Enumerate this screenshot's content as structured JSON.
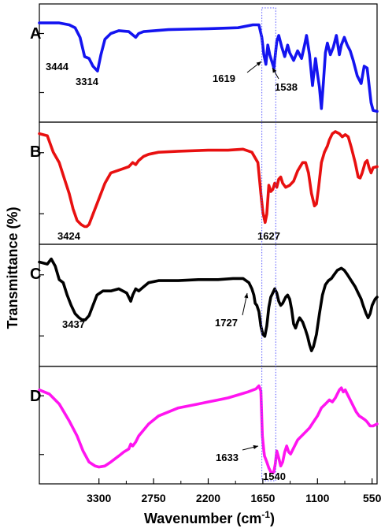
{
  "chart_data": {
    "type": "line",
    "title": "",
    "xlabel": "Wavenumber",
    "xlabel_unit": "(cm",
    "xlabel_unit_exponent": "-1",
    "xlabel_unit_close": ")",
    "ylabel": "Transmittance (%)",
    "xlim": [
      3900,
      500
    ],
    "x_reversed": true,
    "x_ticks": [
      "3300",
      "2750",
      "2200",
      "1650",
      "1100",
      "550"
    ],
    "x_tick_values": [
      3300,
      2750,
      2200,
      1650,
      1100,
      550
    ],
    "grid": false,
    "highlight_band": {
      "x_from": 1660,
      "x_to": 1520,
      "style": "dotted-blue-box"
    },
    "series": [
      {
        "name": "A",
        "color": "#1414f0",
        "peak_labels": [
          "3444",
          "3314",
          "1619",
          "1538"
        ],
        "points": [
          [
            3900,
            0.95
          ],
          [
            3700,
            0.95
          ],
          [
            3600,
            0.93
          ],
          [
            3540,
            0.9
          ],
          [
            3490,
            0.8
          ],
          [
            3444,
            0.6
          ],
          [
            3400,
            0.58
          ],
          [
            3360,
            0.5
          ],
          [
            3314,
            0.45
          ],
          [
            3280,
            0.62
          ],
          [
            3240,
            0.78
          ],
          [
            3180,
            0.84
          ],
          [
            3100,
            0.87
          ],
          [
            3000,
            0.86
          ],
          [
            2930,
            0.8
          ],
          [
            2900,
            0.84
          ],
          [
            2850,
            0.86
          ],
          [
            2600,
            0.88
          ],
          [
            2200,
            0.89
          ],
          [
            1900,
            0.9
          ],
          [
            1750,
            0.93
          ],
          [
            1690,
            0.93
          ],
          [
            1660,
            0.8
          ],
          [
            1640,
            0.62
          ],
          [
            1619,
            0.52
          ],
          [
            1600,
            0.72
          ],
          [
            1580,
            0.62
          ],
          [
            1560,
            0.55
          ],
          [
            1538,
            0.48
          ],
          [
            1510,
            0.76
          ],
          [
            1490,
            0.82
          ],
          [
            1460,
            0.7
          ],
          [
            1430,
            0.6
          ],
          [
            1400,
            0.72
          ],
          [
            1380,
            0.64
          ],
          [
            1340,
            0.56
          ],
          [
            1300,
            0.66
          ],
          [
            1260,
            0.58
          ],
          [
            1230,
            0.72
          ],
          [
            1210,
            0.82
          ],
          [
            1180,
            0.62
          ],
          [
            1150,
            0.3
          ],
          [
            1120,
            0.58
          ],
          [
            1100,
            0.42
          ],
          [
            1080,
            0.28
          ],
          [
            1060,
            0.06
          ],
          [
            1040,
            0.34
          ],
          [
            1020,
            0.64
          ],
          [
            1000,
            0.74
          ],
          [
            970,
            0.62
          ],
          [
            940,
            0.7
          ],
          [
            910,
            0.82
          ],
          [
            880,
            0.62
          ],
          [
            860,
            0.72
          ],
          [
            830,
            0.8
          ],
          [
            800,
            0.72
          ],
          [
            770,
            0.66
          ],
          [
            740,
            0.56
          ],
          [
            700,
            0.4
          ],
          [
            660,
            0.32
          ],
          [
            630,
            0.5
          ],
          [
            600,
            0.48
          ],
          [
            580,
            0.3
          ],
          [
            560,
            0.12
          ],
          [
            540,
            0.04
          ],
          [
            500,
            0.03
          ]
        ]
      },
      {
        "name": "B",
        "color": "#e81010",
        "peak_labels": [
          "3424",
          "1627"
        ],
        "points": [
          [
            3900,
            0.98
          ],
          [
            3820,
            0.96
          ],
          [
            3760,
            0.8
          ],
          [
            3700,
            0.7
          ],
          [
            3650,
            0.55
          ],
          [
            3600,
            0.4
          ],
          [
            3560,
            0.25
          ],
          [
            3520,
            0.14
          ],
          [
            3480,
            0.1
          ],
          [
            3444,
            0.08
          ],
          [
            3424,
            0.08
          ],
          [
            3400,
            0.1
          ],
          [
            3360,
            0.2
          ],
          [
            3300,
            0.35
          ],
          [
            3240,
            0.5
          ],
          [
            3180,
            0.6
          ],
          [
            3120,
            0.62
          ],
          [
            3060,
            0.64
          ],
          [
            3000,
            0.66
          ],
          [
            2960,
            0.7
          ],
          [
            2930,
            0.68
          ],
          [
            2900,
            0.72
          ],
          [
            2850,
            0.76
          ],
          [
            2800,
            0.78
          ],
          [
            2700,
            0.8
          ],
          [
            2500,
            0.81
          ],
          [
            2200,
            0.82
          ],
          [
            2000,
            0.82
          ],
          [
            1850,
            0.83
          ],
          [
            1760,
            0.8
          ],
          [
            1700,
            0.7
          ],
          [
            1670,
            0.4
          ],
          [
            1650,
            0.22
          ],
          [
            1627,
            0.12
          ],
          [
            1610,
            0.2
          ],
          [
            1590,
            0.48
          ],
          [
            1570,
            0.42
          ],
          [
            1550,
            0.44
          ],
          [
            1530,
            0.5
          ],
          [
            1510,
            0.46
          ],
          [
            1490,
            0.54
          ],
          [
            1470,
            0.56
          ],
          [
            1450,
            0.5
          ],
          [
            1420,
            0.46
          ],
          [
            1380,
            0.48
          ],
          [
            1340,
            0.52
          ],
          [
            1300,
            0.62
          ],
          [
            1250,
            0.7
          ],
          [
            1220,
            0.7
          ],
          [
            1190,
            0.6
          ],
          [
            1160,
            0.4
          ],
          [
            1130,
            0.28
          ],
          [
            1110,
            0.3
          ],
          [
            1090,
            0.45
          ],
          [
            1060,
            0.7
          ],
          [
            1030,
            0.8
          ],
          [
            1000,
            0.86
          ],
          [
            980,
            0.92
          ],
          [
            950,
            0.98
          ],
          [
            920,
            1.0
          ],
          [
            880,
            0.98
          ],
          [
            850,
            0.95
          ],
          [
            820,
            0.97
          ],
          [
            790,
            0.95
          ],
          [
            760,
            0.85
          ],
          [
            720,
            0.7
          ],
          [
            690,
            0.56
          ],
          [
            670,
            0.55
          ],
          [
            650,
            0.6
          ],
          [
            620,
            0.7
          ],
          [
            600,
            0.72
          ],
          [
            580,
            0.65
          ],
          [
            560,
            0.6
          ],
          [
            540,
            0.65
          ],
          [
            500,
            0.66
          ]
        ]
      },
      {
        "name": "C",
        "color": "#000000",
        "peak_labels": [
          "3437",
          "1727"
        ],
        "points": [
          [
            3900,
            0.92
          ],
          [
            3820,
            0.9
          ],
          [
            3780,
            0.95
          ],
          [
            3740,
            0.88
          ],
          [
            3700,
            0.75
          ],
          [
            3660,
            0.72
          ],
          [
            3620,
            0.6
          ],
          [
            3580,
            0.5
          ],
          [
            3540,
            0.42
          ],
          [
            3500,
            0.38
          ],
          [
            3470,
            0.36
          ],
          [
            3437,
            0.36
          ],
          [
            3400,
            0.4
          ],
          [
            3360,
            0.5
          ],
          [
            3320,
            0.6
          ],
          [
            3260,
            0.64
          ],
          [
            3180,
            0.64
          ],
          [
            3100,
            0.66
          ],
          [
            3020,
            0.62
          ],
          [
            2980,
            0.54
          ],
          [
            2960,
            0.6
          ],
          [
            2930,
            0.66
          ],
          [
            2900,
            0.64
          ],
          [
            2850,
            0.68
          ],
          [
            2800,
            0.72
          ],
          [
            2700,
            0.74
          ],
          [
            2500,
            0.74
          ],
          [
            2300,
            0.75
          ],
          [
            2100,
            0.75
          ],
          [
            1950,
            0.76
          ],
          [
            1850,
            0.76
          ],
          [
            1790,
            0.72
          ],
          [
            1760,
            0.66
          ],
          [
            1740,
            0.6
          ],
          [
            1727,
            0.52
          ],
          [
            1710,
            0.5
          ],
          [
            1690,
            0.44
          ],
          [
            1670,
            0.3
          ],
          [
            1650,
            0.22
          ],
          [
            1630,
            0.2
          ],
          [
            1610,
            0.3
          ],
          [
            1590,
            0.48
          ],
          [
            1570,
            0.58
          ],
          [
            1550,
            0.62
          ],
          [
            1530,
            0.66
          ],
          [
            1510,
            0.62
          ],
          [
            1490,
            0.54
          ],
          [
            1470,
            0.5
          ],
          [
            1450,
            0.52
          ],
          [
            1420,
            0.58
          ],
          [
            1400,
            0.6
          ],
          [
            1380,
            0.56
          ],
          [
            1360,
            0.46
          ],
          [
            1340,
            0.32
          ],
          [
            1320,
            0.28
          ],
          [
            1300,
            0.34
          ],
          [
            1280,
            0.38
          ],
          [
            1250,
            0.34
          ],
          [
            1220,
            0.26
          ],
          [
            1200,
            0.2
          ],
          [
            1180,
            0.12
          ],
          [
            1160,
            0.06
          ],
          [
            1140,
            0.1
          ],
          [
            1110,
            0.22
          ],
          [
            1080,
            0.42
          ],
          [
            1050,
            0.6
          ],
          [
            1020,
            0.7
          ],
          [
            990,
            0.74
          ],
          [
            960,
            0.76
          ],
          [
            930,
            0.8
          ],
          [
            900,
            0.84
          ],
          [
            860,
            0.86
          ],
          [
            830,
            0.84
          ],
          [
            800,
            0.8
          ],
          [
            760,
            0.74
          ],
          [
            720,
            0.68
          ],
          [
            690,
            0.62
          ],
          [
            660,
            0.56
          ],
          [
            640,
            0.5
          ],
          [
            610,
            0.42
          ],
          [
            590,
            0.38
          ],
          [
            570,
            0.42
          ],
          [
            550,
            0.5
          ],
          [
            520,
            0.56
          ],
          [
            500,
            0.58
          ]
        ]
      },
      {
        "name": "D",
        "color": "#ff14f0",
        "peak_labels": [
          "1633",
          "1540"
        ],
        "points": [
          [
            3900,
            0.86
          ],
          [
            3800,
            0.82
          ],
          [
            3700,
            0.72
          ],
          [
            3600,
            0.55
          ],
          [
            3520,
            0.4
          ],
          [
            3460,
            0.25
          ],
          [
            3400,
            0.14
          ],
          [
            3340,
            0.1
          ],
          [
            3300,
            0.09
          ],
          [
            3240,
            0.1
          ],
          [
            3180,
            0.14
          ],
          [
            3100,
            0.2
          ],
          [
            3050,
            0.24
          ],
          [
            3000,
            0.27
          ],
          [
            2980,
            0.32
          ],
          [
            2960,
            0.3
          ],
          [
            2930,
            0.34
          ],
          [
            2900,
            0.4
          ],
          [
            2850,
            0.46
          ],
          [
            2800,
            0.52
          ],
          [
            2700,
            0.6
          ],
          [
            2600,
            0.64
          ],
          [
            2500,
            0.68
          ],
          [
            2400,
            0.7
          ],
          [
            2300,
            0.72
          ],
          [
            2200,
            0.74
          ],
          [
            2100,
            0.76
          ],
          [
            2000,
            0.78
          ],
          [
            1900,
            0.81
          ],
          [
            1800,
            0.84
          ],
          [
            1720,
            0.87
          ],
          [
            1690,
            0.9
          ],
          [
            1670,
            0.85
          ],
          [
            1655,
            0.4
          ],
          [
            1640,
            0.25
          ],
          [
            1633,
            0.2
          ],
          [
            1610,
            0.14
          ],
          [
            1590,
            0.08
          ],
          [
            1570,
            0.04
          ],
          [
            1550,
            0.03
          ],
          [
            1540,
            0.04
          ],
          [
            1525,
            0.12
          ],
          [
            1510,
            0.25
          ],
          [
            1490,
            0.18
          ],
          [
            1470,
            0.1
          ],
          [
            1450,
            0.14
          ],
          [
            1430,
            0.24
          ],
          [
            1410,
            0.3
          ],
          [
            1390,
            0.24
          ],
          [
            1370,
            0.22
          ],
          [
            1340,
            0.28
          ],
          [
            1300,
            0.36
          ],
          [
            1260,
            0.4
          ],
          [
            1220,
            0.44
          ],
          [
            1180,
            0.48
          ],
          [
            1140,
            0.54
          ],
          [
            1100,
            0.6
          ],
          [
            1060,
            0.68
          ],
          [
            1020,
            0.72
          ],
          [
            980,
            0.76
          ],
          [
            950,
            0.74
          ],
          [
            920,
            0.78
          ],
          [
            900,
            0.82
          ],
          [
            880,
            0.86
          ],
          [
            860,
            0.88
          ],
          [
            840,
            0.84
          ],
          [
            820,
            0.86
          ],
          [
            800,
            0.82
          ],
          [
            770,
            0.76
          ],
          [
            740,
            0.7
          ],
          [
            710,
            0.64
          ],
          [
            680,
            0.6
          ],
          [
            650,
            0.58
          ],
          [
            620,
            0.56
          ],
          [
            600,
            0.54
          ],
          [
            570,
            0.5
          ],
          [
            540,
            0.5
          ],
          [
            500,
            0.52
          ]
        ]
      }
    ]
  }
}
